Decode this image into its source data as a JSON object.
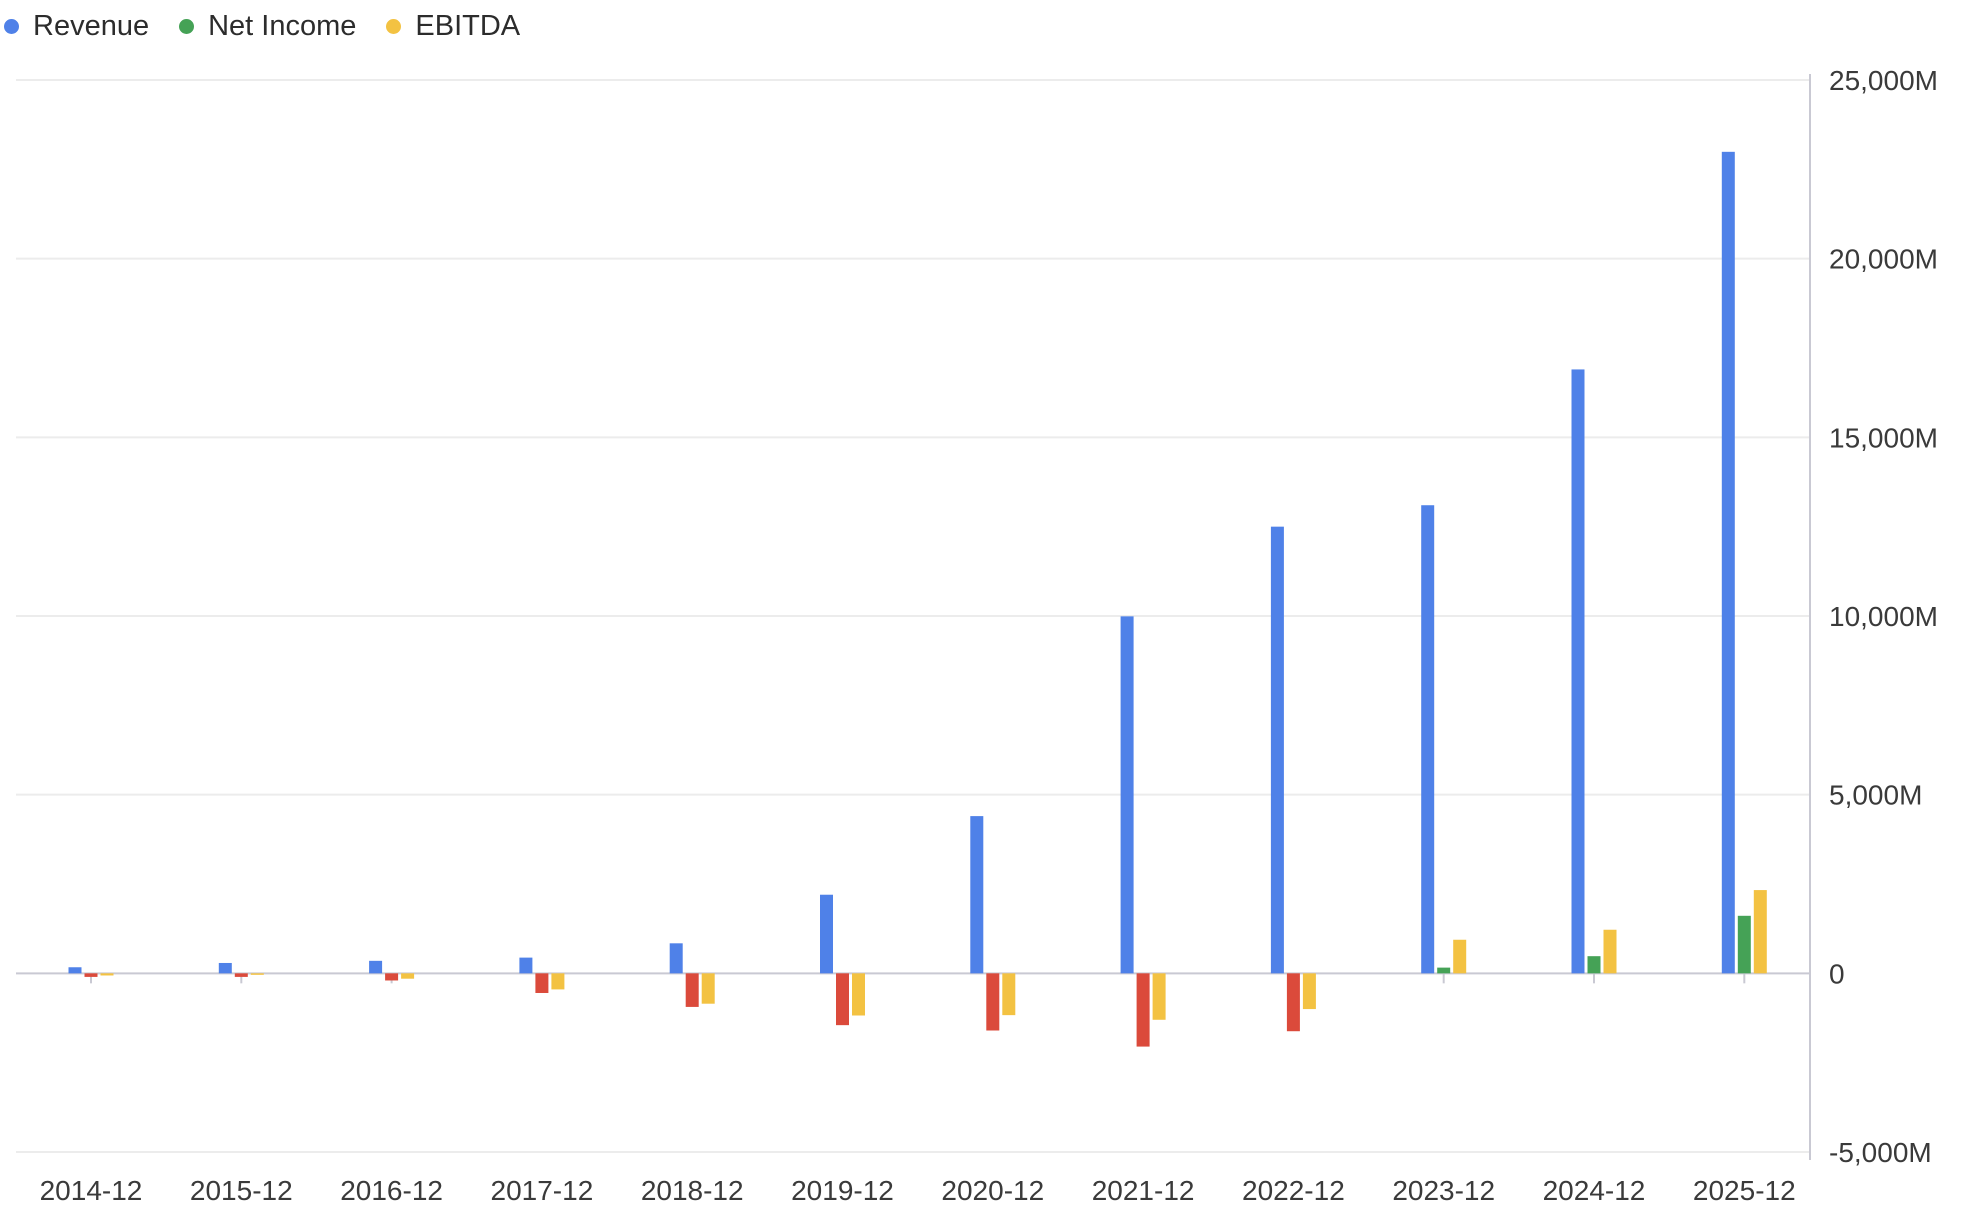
{
  "legend": [
    {
      "name": "Revenue",
      "color": "#4f81e8"
    },
    {
      "name": "Net Income",
      "color": "#45a256"
    },
    {
      "name": "EBITDA",
      "color": "#f3c242"
    }
  ],
  "chart_data": {
    "type": "bar",
    "categories": [
      "2014-12",
      "2015-12",
      "2016-12",
      "2017-12",
      "2018-12",
      "2019-12",
      "2020-12",
      "2021-12",
      "2022-12",
      "2023-12",
      "2024-12",
      "2025-12"
    ],
    "series": [
      {
        "name": "Revenue",
        "color": "#4f81e8",
        "values": [
          170,
          290,
          350,
          440,
          840,
          2200,
          4400,
          9990,
          12500,
          13100,
          16900,
          22990
        ]
      },
      {
        "name": "Net Income",
        "color": "#45a256",
        "negative_color": "#db4a3b",
        "values": [
          -100,
          -100,
          -200,
          -550,
          -940,
          -1450,
          -1600,
          -2050,
          -1620,
          160,
          480,
          1610
        ]
      },
      {
        "name": "EBITDA",
        "color": "#f3c242",
        "values": [
          -60,
          -40,
          -150,
          -450,
          -850,
          -1180,
          -1170,
          -1300,
          -1000,
          940,
          1220,
          2330
        ]
      }
    ],
    "y_ticks": [
      "25,000M",
      "20,000M",
      "15,000M",
      "10,000M",
      "5,000M",
      "0",
      "-5,000M"
    ],
    "ylim": [
      -5000,
      25000
    ],
    "y_axis_position": "right",
    "legend_position": "top-left",
    "grid": true
  }
}
